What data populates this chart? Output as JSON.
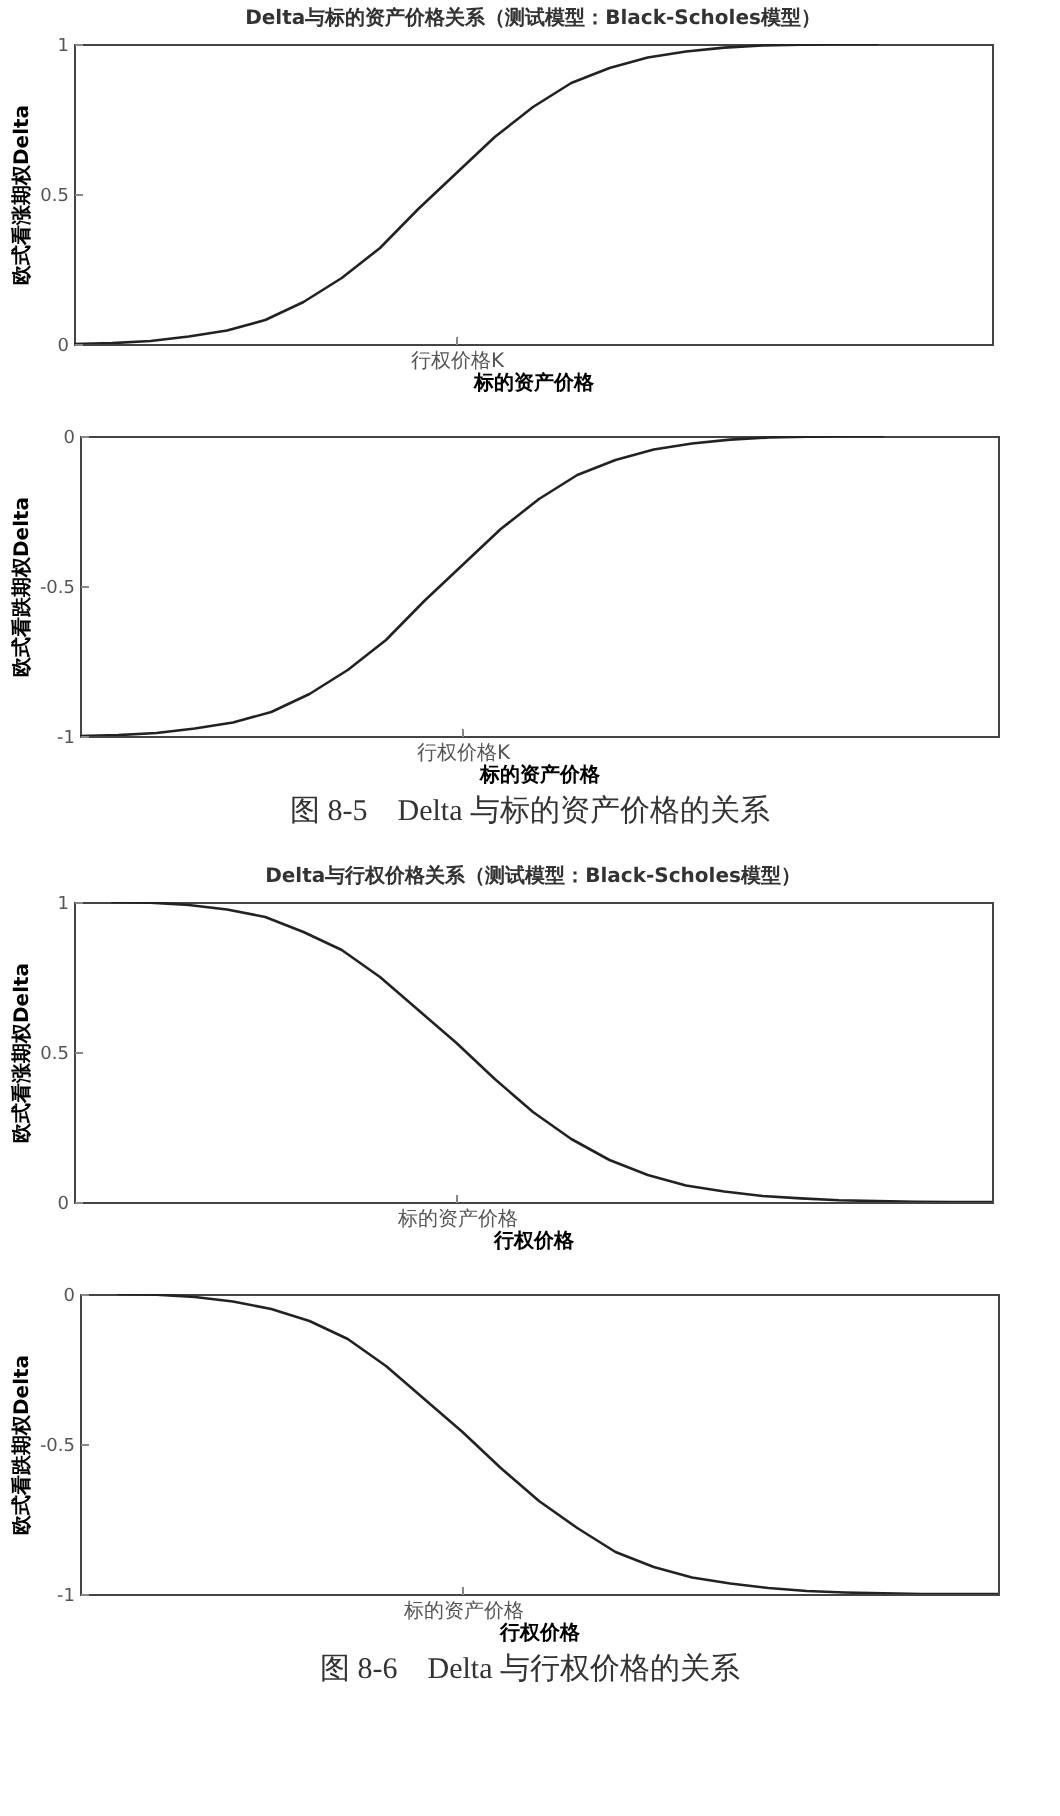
{
  "chart_data": [
    {
      "type": "line",
      "title": "Delta与标的资产价格关系（测试模型：Black-Scholes模型）",
      "xlabel": "标的资产价格",
      "ylabel": "欧式看涨期权Delta",
      "color": "#222222",
      "categories": [
        null,
        null,
        null,
        null,
        null,
        null,
        null,
        null,
        null,
        null,
        "行权价格K",
        null,
        null,
        null,
        null,
        null,
        null,
        null,
        null,
        null,
        null,
        null,
        null,
        null,
        null
      ],
      "values": [
        0,
        0.003,
        0.01,
        0.025,
        0.045,
        0.08,
        0.14,
        0.22,
        0.32,
        0.45,
        0.57,
        0.69,
        0.79,
        0.87,
        0.92,
        0.955,
        0.975,
        0.988,
        0.995,
        0.998,
        1,
        1,
        null,
        null,
        null
      ],
      "ylim": [
        0,
        1
      ],
      "yticks": [
        0,
        0.5,
        1
      ]
    },
    {
      "type": "line",
      "xlabel": "标的资产价格",
      "ylabel": "欧式看跌期权Delta",
      "color": "#222222",
      "categories": [
        null,
        null,
        null,
        null,
        null,
        null,
        null,
        null,
        null,
        null,
        "行权价格K",
        null,
        null,
        null,
        null,
        null,
        null,
        null,
        null,
        null,
        null,
        null,
        null,
        null,
        null
      ],
      "values": [
        -1,
        -0.997,
        -0.99,
        -0.975,
        -0.955,
        -0.92,
        -0.86,
        -0.78,
        -0.68,
        -0.55,
        -0.43,
        -0.31,
        -0.21,
        -0.13,
        -0.08,
        -0.045,
        -0.025,
        -0.012,
        -0.005,
        -0.002,
        0,
        0,
        null,
        null,
        null
      ],
      "ylim": [
        -1,
        0
      ],
      "yticks": [
        -1,
        -0.5,
        0
      ],
      "annotations": [
        "图 8-5　Delta 与标的资产价格的关系"
      ]
    },
    {
      "type": "line",
      "title": "Delta与行权价格关系（测试模型：Black-Scholes模型）",
      "xlabel": "行权价格",
      "ylabel": "欧式看涨期权Delta",
      "color": "#222222",
      "categories": [
        null,
        null,
        null,
        null,
        null,
        null,
        null,
        null,
        null,
        null,
        "标的资产价格",
        null,
        null,
        null,
        null,
        null,
        null,
        null,
        null,
        null,
        null,
        null,
        null,
        null,
        null
      ],
      "values": [
        null,
        1,
        0.998,
        0.99,
        0.975,
        0.95,
        0.9,
        0.84,
        0.75,
        0.64,
        0.53,
        0.41,
        0.3,
        0.21,
        0.14,
        0.09,
        0.055,
        0.035,
        0.02,
        0.012,
        0.006,
        0.003,
        0.001,
        0,
        0
      ],
      "ylim": [
        0,
        1
      ],
      "yticks": [
        0,
        0.5,
        1
      ]
    },
    {
      "type": "line",
      "xlabel": "行权价格",
      "ylabel": "欧式看跌期权Delta",
      "color": "#222222",
      "categories": [
        null,
        null,
        null,
        null,
        null,
        null,
        null,
        null,
        null,
        null,
        "标的资产价格",
        null,
        null,
        null,
        null,
        null,
        null,
        null,
        null,
        null,
        null,
        null,
        null,
        null,
        null
      ],
      "values": [
        null,
        0,
        -0.002,
        -0.01,
        -0.025,
        -0.05,
        -0.09,
        -0.15,
        -0.24,
        -0.35,
        -0.46,
        -0.58,
        -0.69,
        -0.78,
        -0.86,
        -0.91,
        -0.945,
        -0.965,
        -0.98,
        -0.99,
        -0.995,
        -0.998,
        -1,
        -1,
        -1
      ],
      "ylim": [
        -1,
        0
      ],
      "yticks": [
        -1,
        -0.5,
        0
      ],
      "annotations": [
        "图 8-6　Delta 与行权价格的关系"
      ]
    }
  ]
}
